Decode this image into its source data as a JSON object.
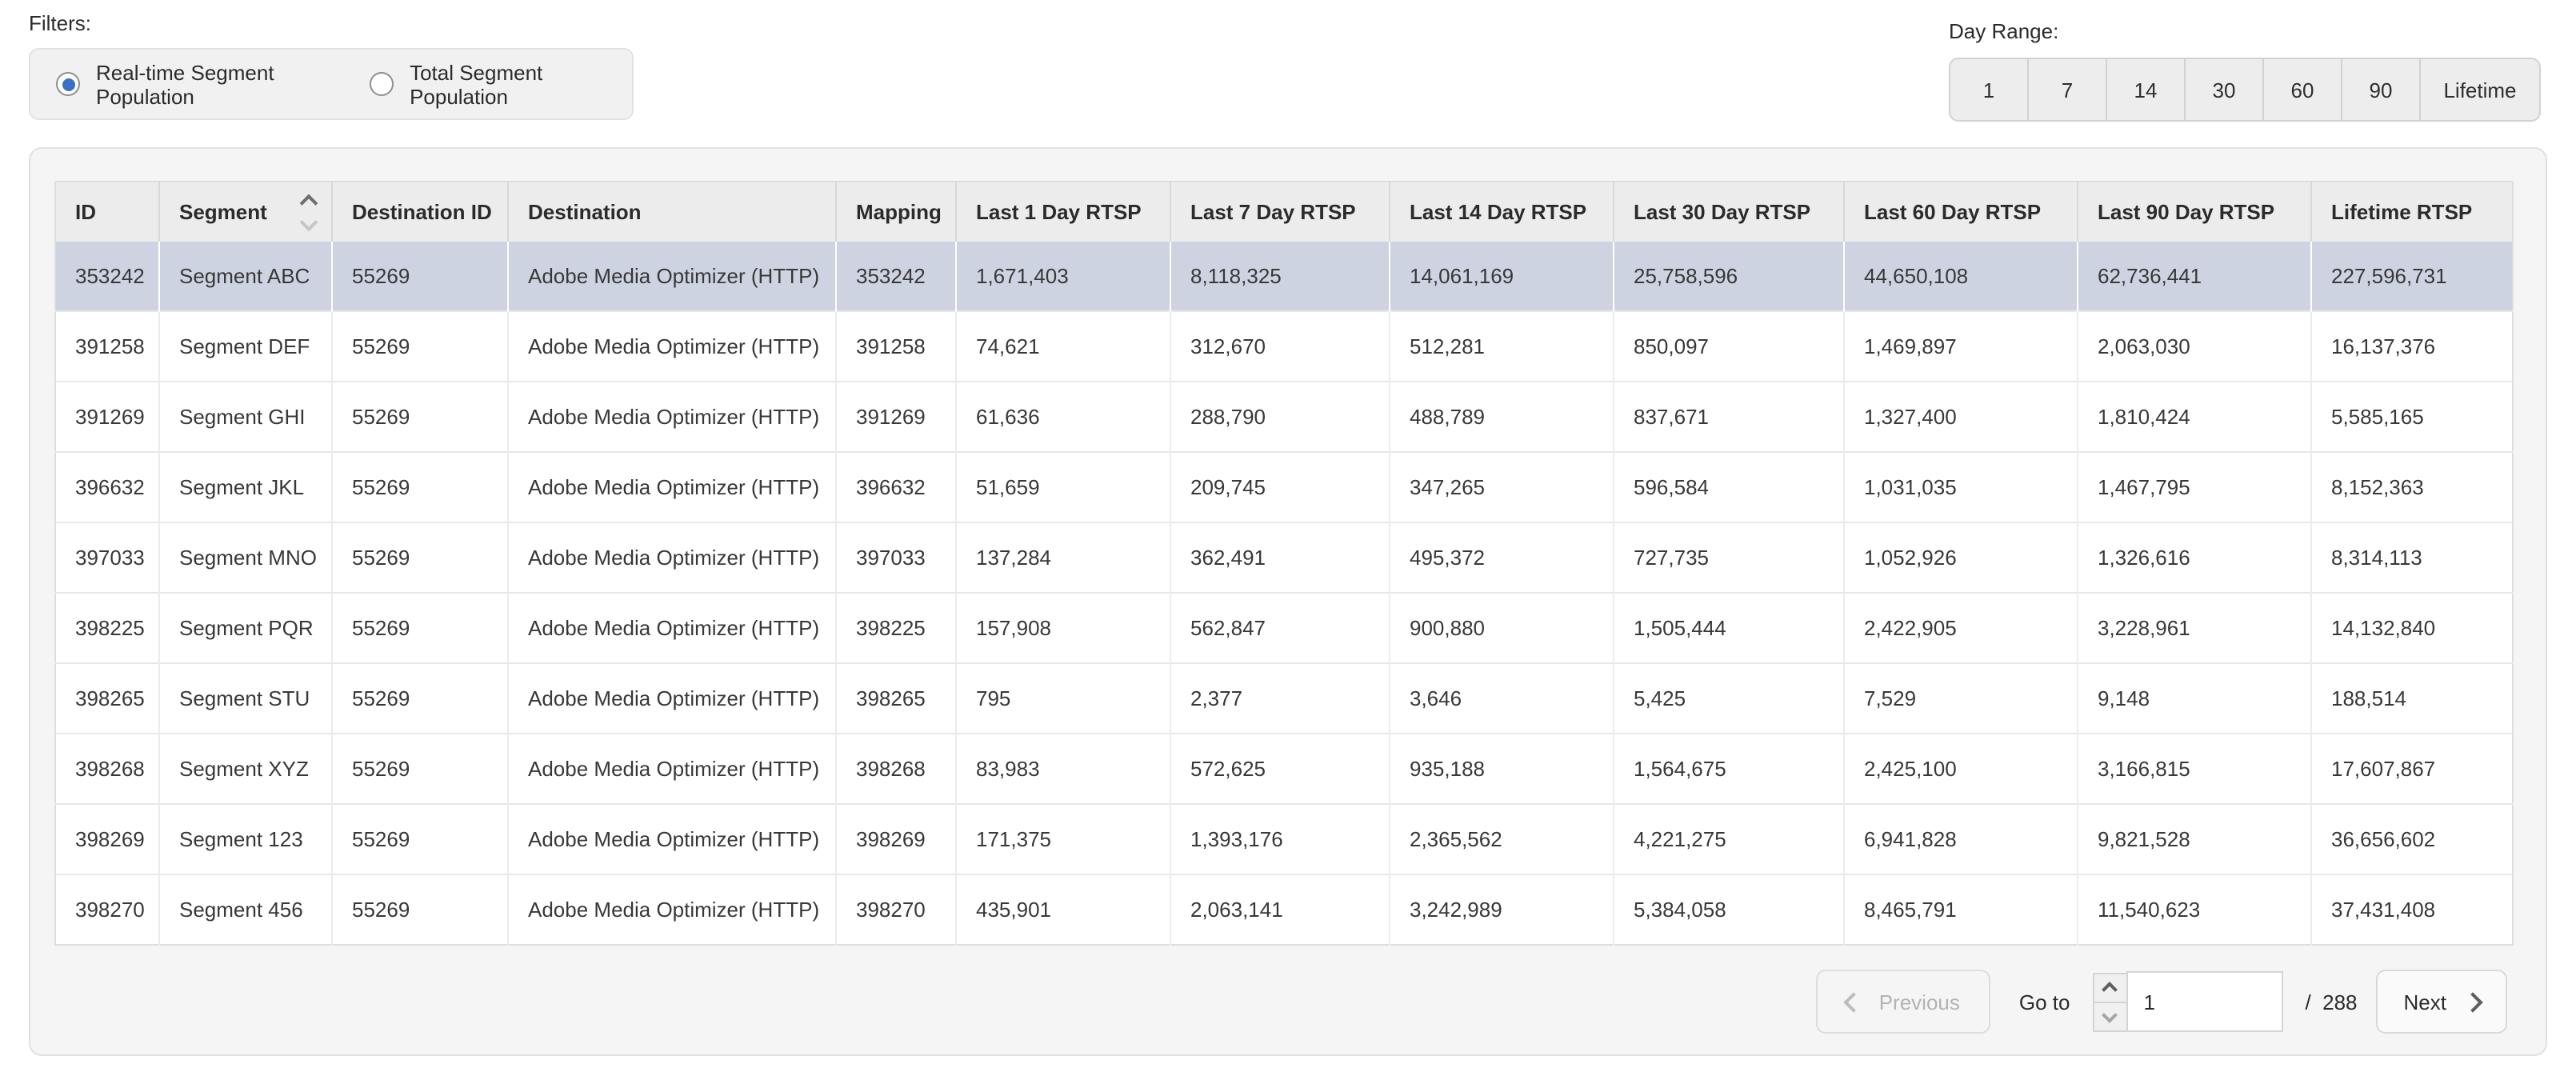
{
  "filters": {
    "label": "Filters:",
    "options": [
      {
        "label": "Real-time Segment Population",
        "selected": true
      },
      {
        "label": "Total Segment Population",
        "selected": false
      }
    ]
  },
  "day_range": {
    "label": "Day Range:",
    "options": [
      "1",
      "7",
      "14",
      "30",
      "60",
      "90",
      "Lifetime"
    ]
  },
  "table": {
    "columns": [
      {
        "label": "ID",
        "sorted": false
      },
      {
        "label": "Segment",
        "sorted": true
      },
      {
        "label": "Destination ID",
        "sorted": false
      },
      {
        "label": "Destination",
        "sorted": false
      },
      {
        "label": "Mapping",
        "sorted": false
      },
      {
        "label": "Last 1 Day RTSP",
        "sorted": false
      },
      {
        "label": "Last 7 Day RTSP",
        "sorted": false
      },
      {
        "label": "Last 14 Day RTSP",
        "sorted": false
      },
      {
        "label": "Last 30 Day RTSP",
        "sorted": false
      },
      {
        "label": "Last 60 Day RTSP",
        "sorted": false
      },
      {
        "label": "Last 90 Day RTSP",
        "sorted": false
      },
      {
        "label": "Lifetime RTSP",
        "sorted": false
      }
    ],
    "selected_row_index": 0,
    "rows": [
      [
        "353242",
        "Segment ABC",
        "55269",
        "Adobe Media Optimizer (HTTP)",
        "353242",
        "1,671,403",
        "8,118,325",
        "14,061,169",
        "25,758,596",
        "44,650,108",
        "62,736,441",
        "227,596,731"
      ],
      [
        "391258",
        "Segment DEF",
        "55269",
        "Adobe Media Optimizer (HTTP)",
        "391258",
        "74,621",
        "312,670",
        "512,281",
        "850,097",
        "1,469,897",
        "2,063,030",
        "16,137,376"
      ],
      [
        "391269",
        "Segment GHI",
        "55269",
        "Adobe Media Optimizer (HTTP)",
        "391269",
        "61,636",
        "288,790",
        "488,789",
        "837,671",
        "1,327,400",
        "1,810,424",
        "5,585,165"
      ],
      [
        "396632",
        "Segment JKL",
        "55269",
        "Adobe Media Optimizer (HTTP)",
        "396632",
        "51,659",
        "209,745",
        "347,265",
        "596,584",
        "1,031,035",
        "1,467,795",
        "8,152,363"
      ],
      [
        "397033",
        "Segment MNO",
        "55269",
        "Adobe Media Optimizer (HTTP)",
        "397033",
        "137,284",
        "362,491",
        "495,372",
        "727,735",
        "1,052,926",
        "1,326,616",
        "8,314,113"
      ],
      [
        "398225",
        "Segment PQR",
        "55269",
        "Adobe Media Optimizer (HTTP)",
        "398225",
        "157,908",
        "562,847",
        "900,880",
        "1,505,444",
        "2,422,905",
        "3,228,961",
        "14,132,840"
      ],
      [
        "398265",
        "Segment STU",
        "55269",
        "Adobe Media Optimizer (HTTP)",
        "398265",
        "795",
        "2,377",
        "3,646",
        "5,425",
        "7,529",
        "9,148",
        "188,514"
      ],
      [
        "398268",
        "Segment XYZ",
        "55269",
        "Adobe Media Optimizer (HTTP)",
        "398268",
        "83,983",
        "572,625",
        "935,188",
        "1,564,675",
        "2,425,100",
        "3,166,815",
        "17,607,867"
      ],
      [
        "398269",
        "Segment 123",
        "55269",
        "Adobe Media Optimizer (HTTP)",
        "398269",
        "171,375",
        "1,393,176",
        "2,365,562",
        "4,221,275",
        "6,941,828",
        "9,821,528",
        "36,656,602"
      ],
      [
        "398270",
        "Segment 456",
        "55269",
        "Adobe Media Optimizer (HTTP)",
        "398270",
        "435,901",
        "2,063,141",
        "3,242,989",
        "5,384,058",
        "8,465,791",
        "11,540,623",
        "37,431,408"
      ]
    ]
  },
  "pagination": {
    "previous_label": "Previous",
    "go_to_label": "Go to",
    "page_value": "1",
    "total_pages_label": "/  288",
    "next_label": "Next"
  },
  "colors": {
    "accent_blue": "#3b6fc9",
    "selected_row": "#cdd3e1",
    "header_bg": "#ececec",
    "panel_bg": "#f5f5f5"
  }
}
